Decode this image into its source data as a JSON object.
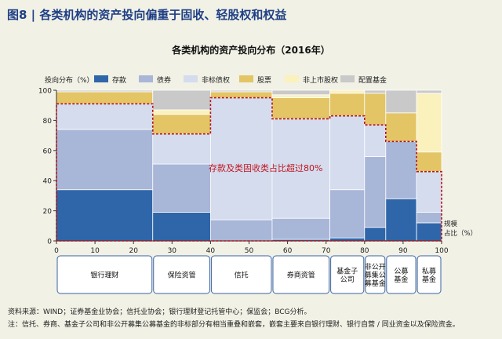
{
  "figure_title": "图8 | 各类机构的资产投向偏重于固收、轻股权和权益",
  "footer": {
    "source": "资料来源：WIND；证券基金业协会；信托业协会；银行理财登记托管中心；保监会；BCG分析。",
    "note": "注：信托、券商、基金子公司和非公开募集公募基金的非标部分有相当重叠和嵌套，嵌套主要来自银行理财、银行自营 / 同业资金以及保险资金。"
  },
  "chart_data": {
    "type": "marimekko",
    "title": "各类机构的资产投向分布（2016年）",
    "ylabel": "投向分布（%）",
    "xlabel": "规模占比（%）",
    "xlim": [
      0,
      100
    ],
    "ylim": [
      0,
      100
    ],
    "x_ticks": [
      "0",
      "10",
      "20",
      "30",
      "40",
      "50",
      "60",
      "70",
      "80",
      "90",
      "100"
    ],
    "y_ticks": [
      "0",
      "20",
      "40",
      "60",
      "80",
      "100"
    ],
    "legend_position": "top",
    "series": [
      {
        "name": "存款",
        "color": "#2f66a9"
      },
      {
        "name": "债券",
        "color": "#a8b6d8"
      },
      {
        "name": "非标债权",
        "color": "#d4dcee"
      },
      {
        "name": "股票",
        "color": "#e3c565"
      },
      {
        "name": "非上市股权",
        "color": "#faf1bd"
      },
      {
        "name": "配置基金",
        "color": "#c9c9c9"
      }
    ],
    "columns": [
      {
        "label": "银行理财",
        "x0": 0,
        "x1": 25,
        "values": [
          34,
          40,
          17,
          8,
          0,
          1
        ]
      },
      {
        "label": "保险资管",
        "x0": 25,
        "x1": 40,
        "values": [
          19,
          32,
          20,
          13,
          3,
          13
        ]
      },
      {
        "label": "信托",
        "x0": 40,
        "x1": 56,
        "values": [
          0,
          14,
          81,
          4,
          0,
          1
        ]
      },
      {
        "label": "券商资管",
        "x0": 56,
        "x1": 71,
        "values": [
          1,
          14,
          66,
          14,
          2,
          3
        ]
      },
      {
        "label": "基金子公司",
        "x0": 71,
        "x1": 80,
        "values": [
          2,
          32,
          49,
          15,
          2,
          0
        ]
      },
      {
        "label": "非公开募集公募基金",
        "x0": 80,
        "x1": 85.5,
        "values": [
          9,
          47,
          21,
          21,
          0,
          2
        ]
      },
      {
        "label": "公募基金",
        "x0": 85.5,
        "x1": 93.5,
        "values": [
          28,
          38,
          0,
          19,
          0,
          15
        ]
      },
      {
        "label": "私募基金",
        "x0": 93.5,
        "x1": 100,
        "values": [
          12,
          7,
          27,
          13,
          39,
          2
        ]
      }
    ],
    "annotation": {
      "text": "存款及类固收类占比超过80%",
      "bounded_share": [
        91,
        71,
        95,
        81,
        83,
        77,
        66,
        46
      ]
    }
  }
}
